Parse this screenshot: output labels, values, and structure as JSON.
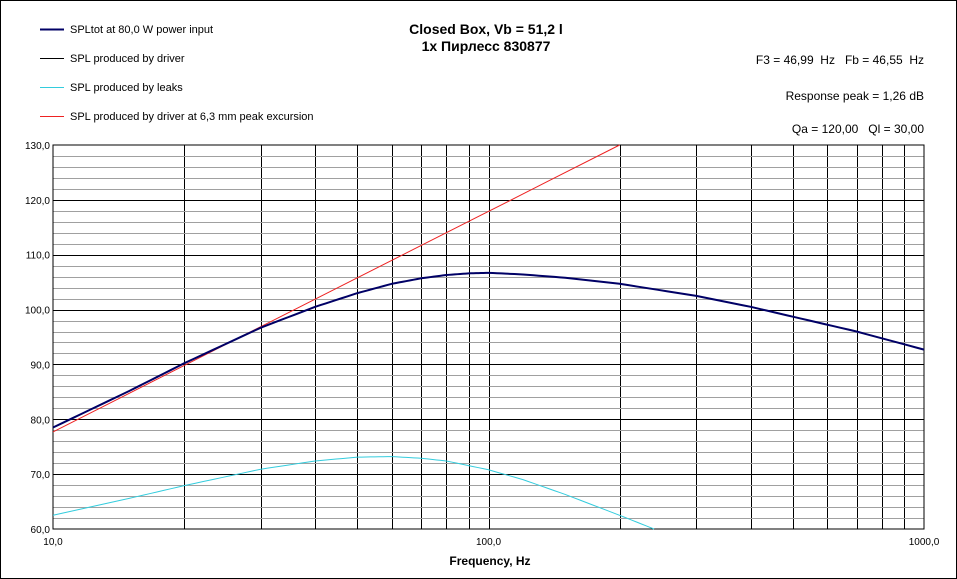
{
  "chart_data": {
    "type": "line",
    "title": "Closed Box, Vb = 51,2 l",
    "subtitle": "1x Пирлесс 830877",
    "info": [
      "F3 = 46,99  Hz   Fb = 46,55  Hz",
      "Response peak = 1,26 dB",
      "Qa = 120,00   Ql = 30,00"
    ],
    "xlabel": "Frequency, Hz",
    "ylabel": "",
    "x_scale": "log",
    "xlim": [
      10,
      1000
    ],
    "ylim": [
      60,
      130
    ],
    "x_tick_labels": [
      "10,0",
      "100,0",
      "1000,0"
    ],
    "x_tick_values": [
      10,
      100,
      1000
    ],
    "y_tick_labels": [
      "60,0",
      "70,0",
      "80,0",
      "90,0",
      "100,0",
      "110,0",
      "120,0",
      "130,0"
    ],
    "y_tick_values": [
      60,
      70,
      80,
      90,
      100,
      110,
      120,
      130
    ],
    "grid": true,
    "legend_position": "top-left",
    "series": [
      {
        "name": "SPLtot at 80,0 W power input",
        "color": "#000066",
        "x": [
          10,
          15,
          20,
          30,
          40,
          50,
          60,
          70,
          80,
          90,
          100,
          120,
          150,
          200,
          300,
          400,
          500,
          700,
          1000
        ],
        "y": [
          78.5,
          85.2,
          90.2,
          96.7,
          100.5,
          103.0,
          104.7,
          105.7,
          106.3,
          106.6,
          106.7,
          106.4,
          105.8,
          104.7,
          102.5,
          100.5,
          98.7,
          96.0,
          92.7
        ]
      },
      {
        "name": "SPL produced by driver",
        "color": "#000000",
        "x": [
          10,
          15,
          20,
          30,
          40,
          50,
          60,
          70,
          80,
          90,
          100,
          120,
          150,
          200,
          300,
          400,
          500,
          700,
          1000
        ],
        "y": [
          78.5,
          85.2,
          90.2,
          96.7,
          100.5,
          103.0,
          104.7,
          105.7,
          106.3,
          106.6,
          106.7,
          106.4,
          105.8,
          104.7,
          102.5,
          100.5,
          98.7,
          96.0,
          92.7
        ]
      },
      {
        "name": "SPL produced by leaks",
        "color": "#33ccdd",
        "x": [
          10,
          15,
          20,
          30,
          40,
          50,
          60,
          70,
          80,
          100,
          120,
          150,
          200,
          240
        ],
        "y": [
          62.5,
          65.6,
          67.9,
          70.9,
          72.4,
          73.1,
          73.2,
          72.9,
          72.4,
          70.8,
          69.0,
          66.3,
          62.5,
          60.0
        ]
      },
      {
        "name": "SPL produced by driver at 6,3 mm peak excursion",
        "color": "#ee2222",
        "x": [
          10,
          200
        ],
        "y": [
          77.7,
          130.0
        ]
      }
    ]
  }
}
